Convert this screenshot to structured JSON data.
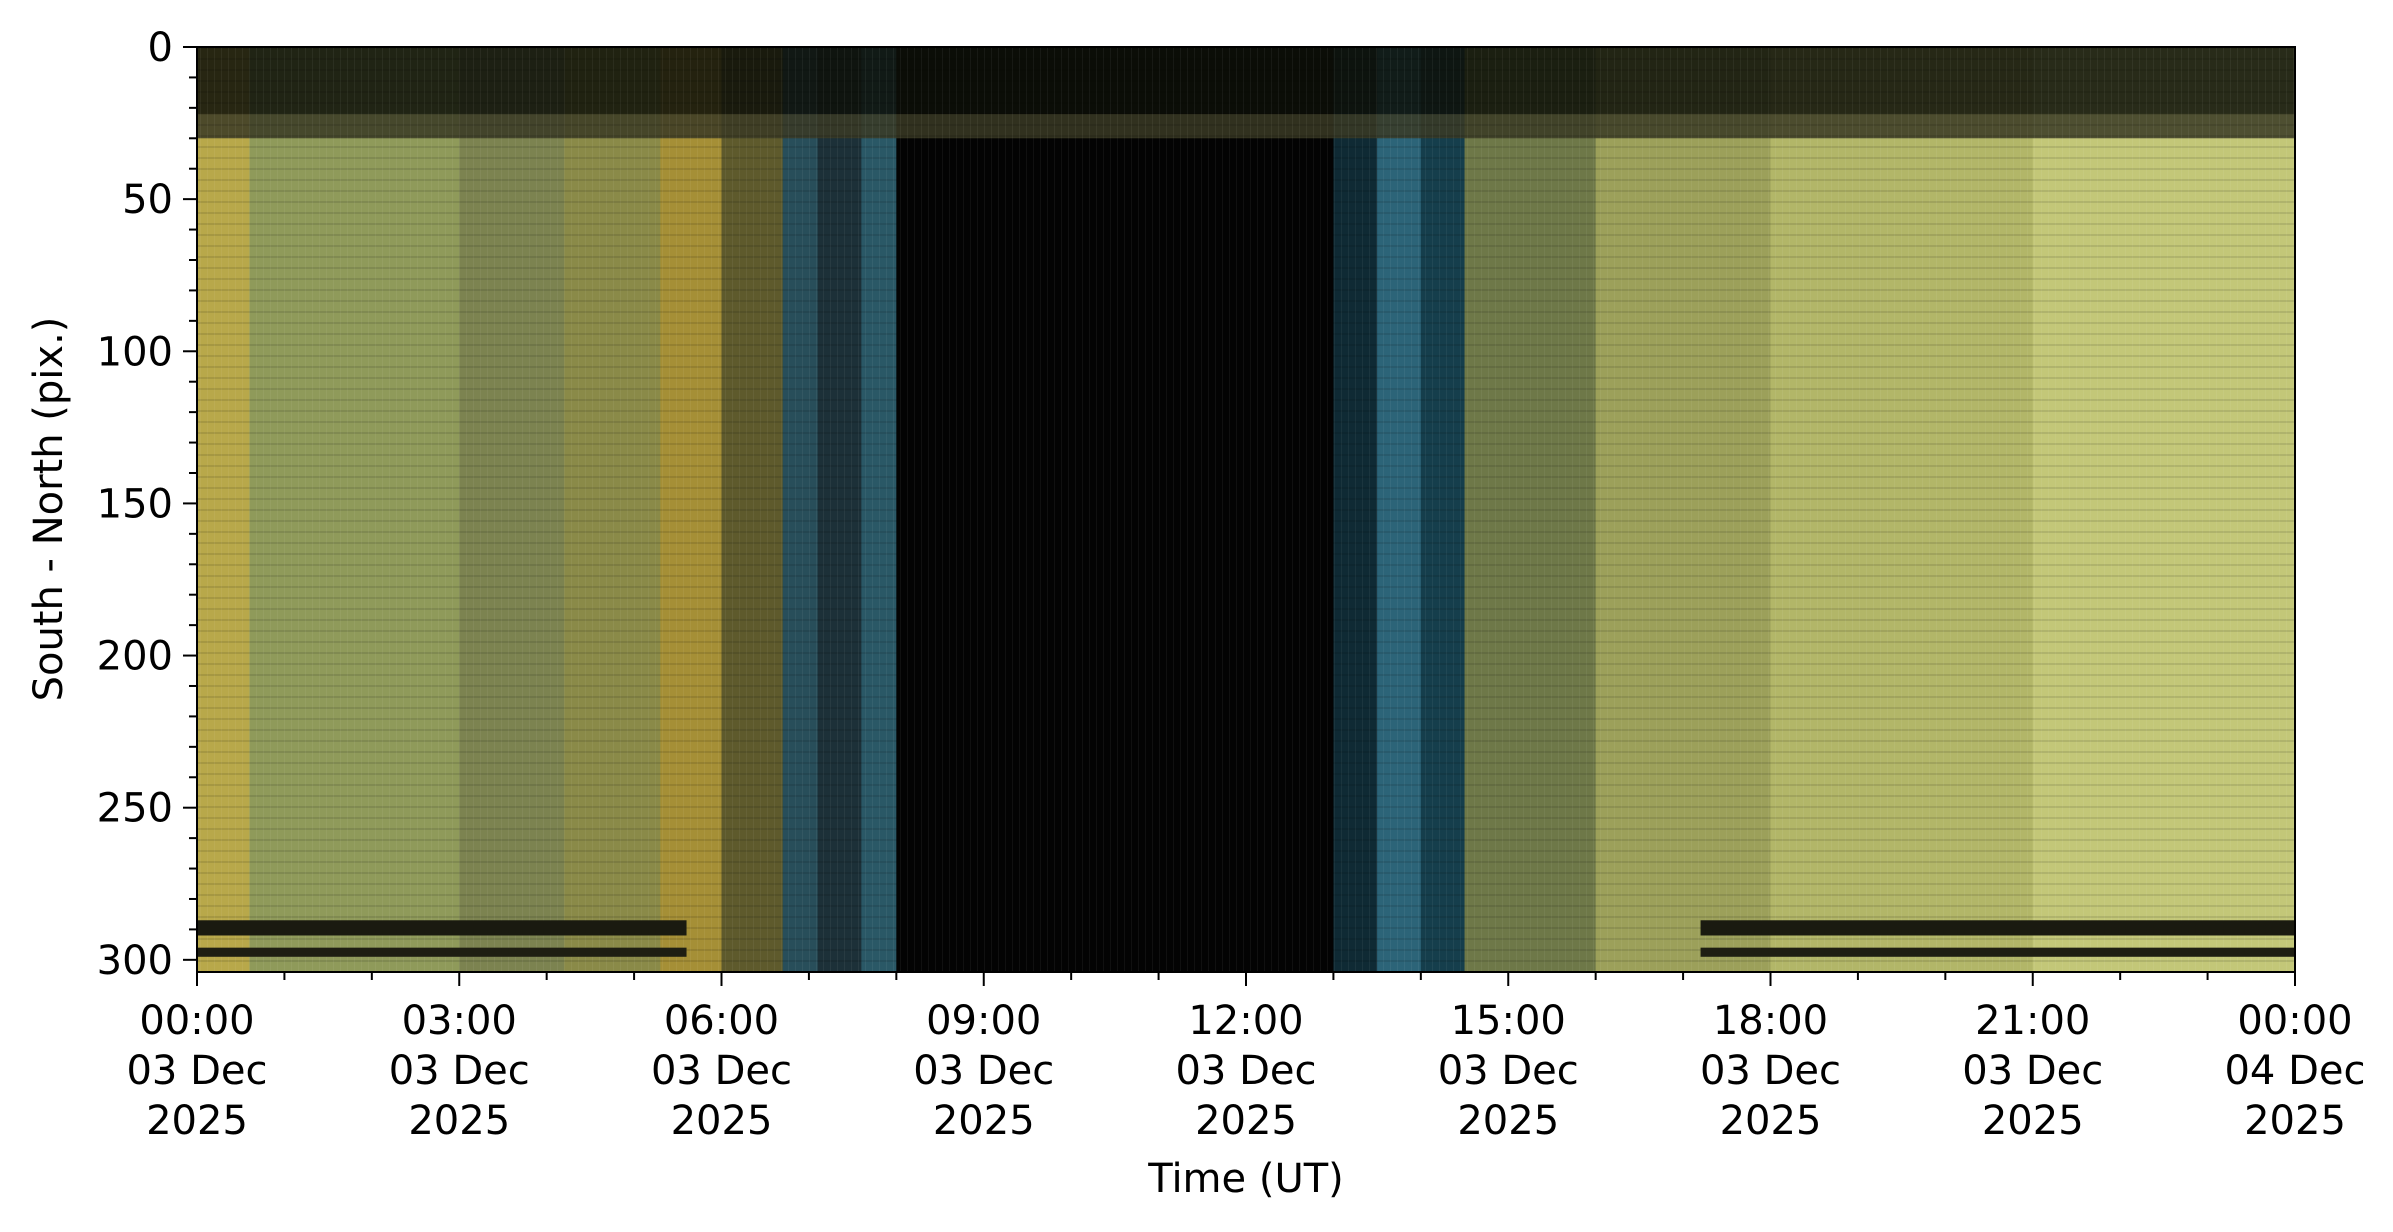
{
  "chart_data": {
    "type": "heatmap",
    "title": "",
    "xlabel": "Time (UT)",
    "ylabel": "South - North (pix.)",
    "x_ticks": [
      {
        "hours": 0,
        "time": "00:00",
        "date": "03 Dec",
        "year": "2025"
      },
      {
        "hours": 3,
        "time": "03:00",
        "date": "03 Dec",
        "year": "2025"
      },
      {
        "hours": 6,
        "time": "06:00",
        "date": "03 Dec",
        "year": "2025"
      },
      {
        "hours": 9,
        "time": "09:00",
        "date": "03 Dec",
        "year": "2025"
      },
      {
        "hours": 12,
        "time": "12:00",
        "date": "03 Dec",
        "year": "2025"
      },
      {
        "hours": 15,
        "time": "15:00",
        "date": "03 Dec",
        "year": "2025"
      },
      {
        "hours": 18,
        "time": "18:00",
        "date": "03 Dec",
        "year": "2025"
      },
      {
        "hours": 21,
        "time": "21:00",
        "date": "03 Dec",
        "year": "2025"
      },
      {
        "hours": 24,
        "time": "00:00",
        "date": "04 Dec",
        "year": "2025"
      }
    ],
    "y_ticks": [
      0,
      50,
      100,
      150,
      200,
      250,
      300
    ],
    "xlim": [
      0,
      24
    ],
    "ylim": [
      304,
      0
    ],
    "color_segments": [
      {
        "from": 0.0,
        "to": 0.6,
        "color": "#b8a84a"
      },
      {
        "from": 0.6,
        "to": 3.0,
        "color": "#8f9a5a"
      },
      {
        "from": 3.0,
        "to": 4.2,
        "color": "#7c8350"
      },
      {
        "from": 4.2,
        "to": 5.3,
        "color": "#8a8a48"
      },
      {
        "from": 5.3,
        "to": 6.0,
        "color": "#a58f36"
      },
      {
        "from": 6.0,
        "to": 6.7,
        "color": "#5e5a2c"
      },
      {
        "from": 6.7,
        "to": 7.1,
        "color": "#284e5a"
      },
      {
        "from": 7.1,
        "to": 7.6,
        "color": "#1c3038"
      },
      {
        "from": 7.6,
        "to": 8.0,
        "color": "#2a5866"
      },
      {
        "from": 8.0,
        "to": 13.0,
        "color": "#030303"
      },
      {
        "from": 13.0,
        "to": 13.5,
        "color": "#0f2a34"
      },
      {
        "from": 13.5,
        "to": 14.0,
        "color": "#2c6478"
      },
      {
        "from": 14.0,
        "to": 14.5,
        "color": "#153e4c"
      },
      {
        "from": 14.5,
        "to": 16.0,
        "color": "#6e7848"
      },
      {
        "from": 16.0,
        "to": 18.0,
        "color": "#9ca05a"
      },
      {
        "from": 18.0,
        "to": 21.0,
        "color": "#b2b668"
      },
      {
        "from": 21.0,
        "to": 24.0,
        "color": "#c3c778"
      }
    ],
    "dark_bands": [
      {
        "y_from": 0,
        "y_to": 22,
        "color": "#0d0f08"
      },
      {
        "y_from": 22,
        "y_to": 30,
        "color": "#3a3a24"
      }
    ],
    "bottom_stripes": [
      {
        "x_from": 0.0,
        "x_to": 5.6,
        "y_from": 287,
        "y_to": 292,
        "color": "#1a1a10"
      },
      {
        "x_from": 0.0,
        "x_to": 5.6,
        "y_from": 296,
        "y_to": 299,
        "color": "#1e1e12"
      },
      {
        "x_from": 17.2,
        "x_to": 24.0,
        "y_from": 287,
        "y_to": 292,
        "color": "#1a1a10"
      },
      {
        "x_from": 17.2,
        "x_to": 24.0,
        "y_from": 296,
        "y_to": 299,
        "color": "#1e1e12"
      }
    ]
  }
}
